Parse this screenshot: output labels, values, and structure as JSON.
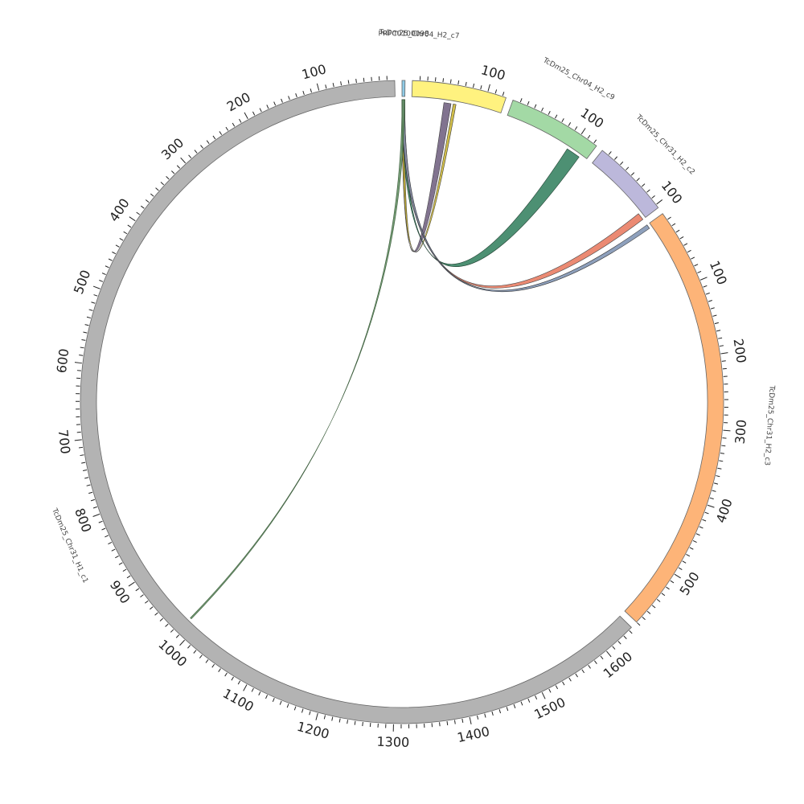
{
  "chart_data": {
    "type": "chord",
    "segments": [
      {
        "name": "PRFC0100098",
        "length": 4,
        "color": "#8ecae6",
        "label_flip": false
      },
      {
        "name": "TcDm25_Chr04_H2_c7",
        "length": 125,
        "color": "#fff27f",
        "label_flip": false,
        "label_pos_fraction": 0.05
      },
      {
        "name": "TcDm25_Chr04_H2_c9",
        "length": 125,
        "color": "#a3d9a5",
        "label_flip": false
      },
      {
        "name": "TcDm25_Chr31_H2_c2",
        "length": 105,
        "color": "#bcb8db",
        "label_flip": false
      },
      {
        "name": "TcDm25_Chr31_H2_c3",
        "length": 580,
        "color": "#fdb478",
        "label_flip": false
      },
      {
        "name": "TcDm25_Chr31_H1_c1",
        "length": 1645,
        "color": "#b3b3b3",
        "label_flip": true,
        "reversed": true
      }
    ],
    "ticks": {
      "minor": 10,
      "major": 100
    },
    "links": [
      {
        "from": [
          0,
          0,
          4
        ],
        "to": [
          1,
          45,
          55
        ],
        "color": "#6b5b7b",
        "stroke": "#3c3c3c"
      },
      {
        "from": [
          0,
          0,
          4
        ],
        "to": [
          1,
          58,
          62
        ],
        "color": "#c9b32a",
        "stroke": "#3c3c3c"
      },
      {
        "from": [
          0,
          0,
          4
        ],
        "to": [
          2,
          95,
          115
        ],
        "color": "#2e7d5b",
        "stroke": "#1f3d2f"
      },
      {
        "from": [
          0,
          0,
          4
        ],
        "to": [
          3,
          95,
          105
        ],
        "color": "#e8755a",
        "stroke": "#444444"
      },
      {
        "from": [
          0,
          0,
          4
        ],
        "to": [
          4,
          0,
          6
        ],
        "color": "#7a8fb0",
        "stroke": "#333333"
      },
      {
        "from": [
          0,
          0,
          4
        ],
        "to": [
          5,
          985,
          987
        ],
        "color": "#5c8a5c",
        "stroke": "#3d5e3d"
      }
    ]
  }
}
